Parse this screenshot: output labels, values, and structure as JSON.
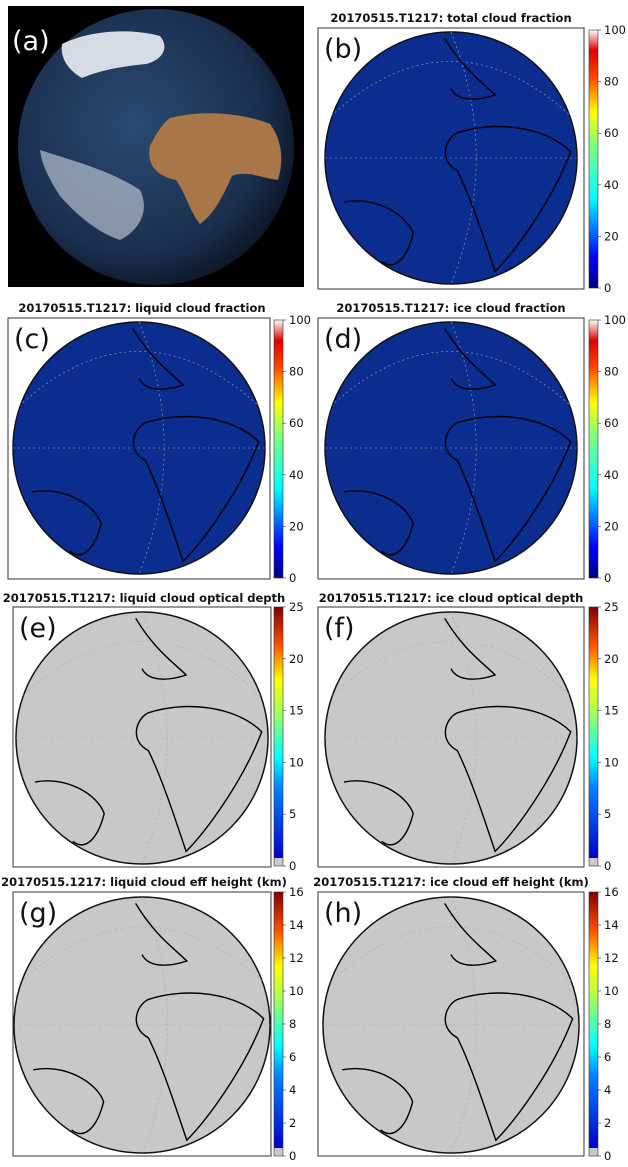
{
  "figure": {
    "photo_panel_label": "(a)"
  },
  "chart_data": [
    {
      "type": "heatmap",
      "panel_label": "(b)",
      "title": "20170515.T1217: total cloud fraction",
      "colorbar_ticks": [
        0,
        20,
        40,
        60,
        80,
        100
      ],
      "colorbar_range": [
        0,
        100
      ]
    },
    {
      "type": "heatmap",
      "panel_label": "(c)",
      "title": "20170515.T1217: liquid cloud fraction",
      "colorbar_ticks": [
        0,
        20,
        40,
        60,
        80,
        100
      ],
      "colorbar_range": [
        0,
        100
      ]
    },
    {
      "type": "heatmap",
      "panel_label": "(d)",
      "title": "20170515.T1217: ice cloud fraction",
      "colorbar_ticks": [
        0,
        20,
        40,
        60,
        80,
        100
      ],
      "colorbar_range": [
        0,
        100
      ]
    },
    {
      "type": "heatmap",
      "panel_label": "(e)",
      "title": "20170515.T1217: liquid cloud optical depth",
      "colorbar_ticks": [
        0,
        5,
        10,
        15,
        20,
        25
      ],
      "colorbar_range": [
        0,
        25
      ]
    },
    {
      "type": "heatmap",
      "panel_label": "(f)",
      "title": "20170515.T1217: ice cloud optical depth",
      "colorbar_ticks": [
        0,
        5,
        10,
        15,
        20,
        25
      ],
      "colorbar_range": [
        0,
        25
      ]
    },
    {
      "type": "heatmap",
      "panel_label": "(g)",
      "title": "20170515.1217: liquid cloud eff height (km)",
      "colorbar_ticks": [
        0,
        2,
        4,
        6,
        8,
        10,
        12,
        14,
        16
      ],
      "colorbar_range": [
        0,
        16
      ]
    },
    {
      "type": "heatmap",
      "panel_label": "(h)",
      "title": "20170515.T1217: ice cloud eff height (km)",
      "colorbar_ticks": [
        0,
        2,
        4,
        6,
        8,
        10,
        12,
        14,
        16
      ],
      "colorbar_range": [
        0,
        16
      ]
    }
  ],
  "colors": {
    "ocean_fraction": "#0b2d8f",
    "ocean_photo": "#1b3558",
    "no_cloud_grey": "#c8c8c8",
    "land_photo": "#a87648",
    "space": "#000000"
  }
}
